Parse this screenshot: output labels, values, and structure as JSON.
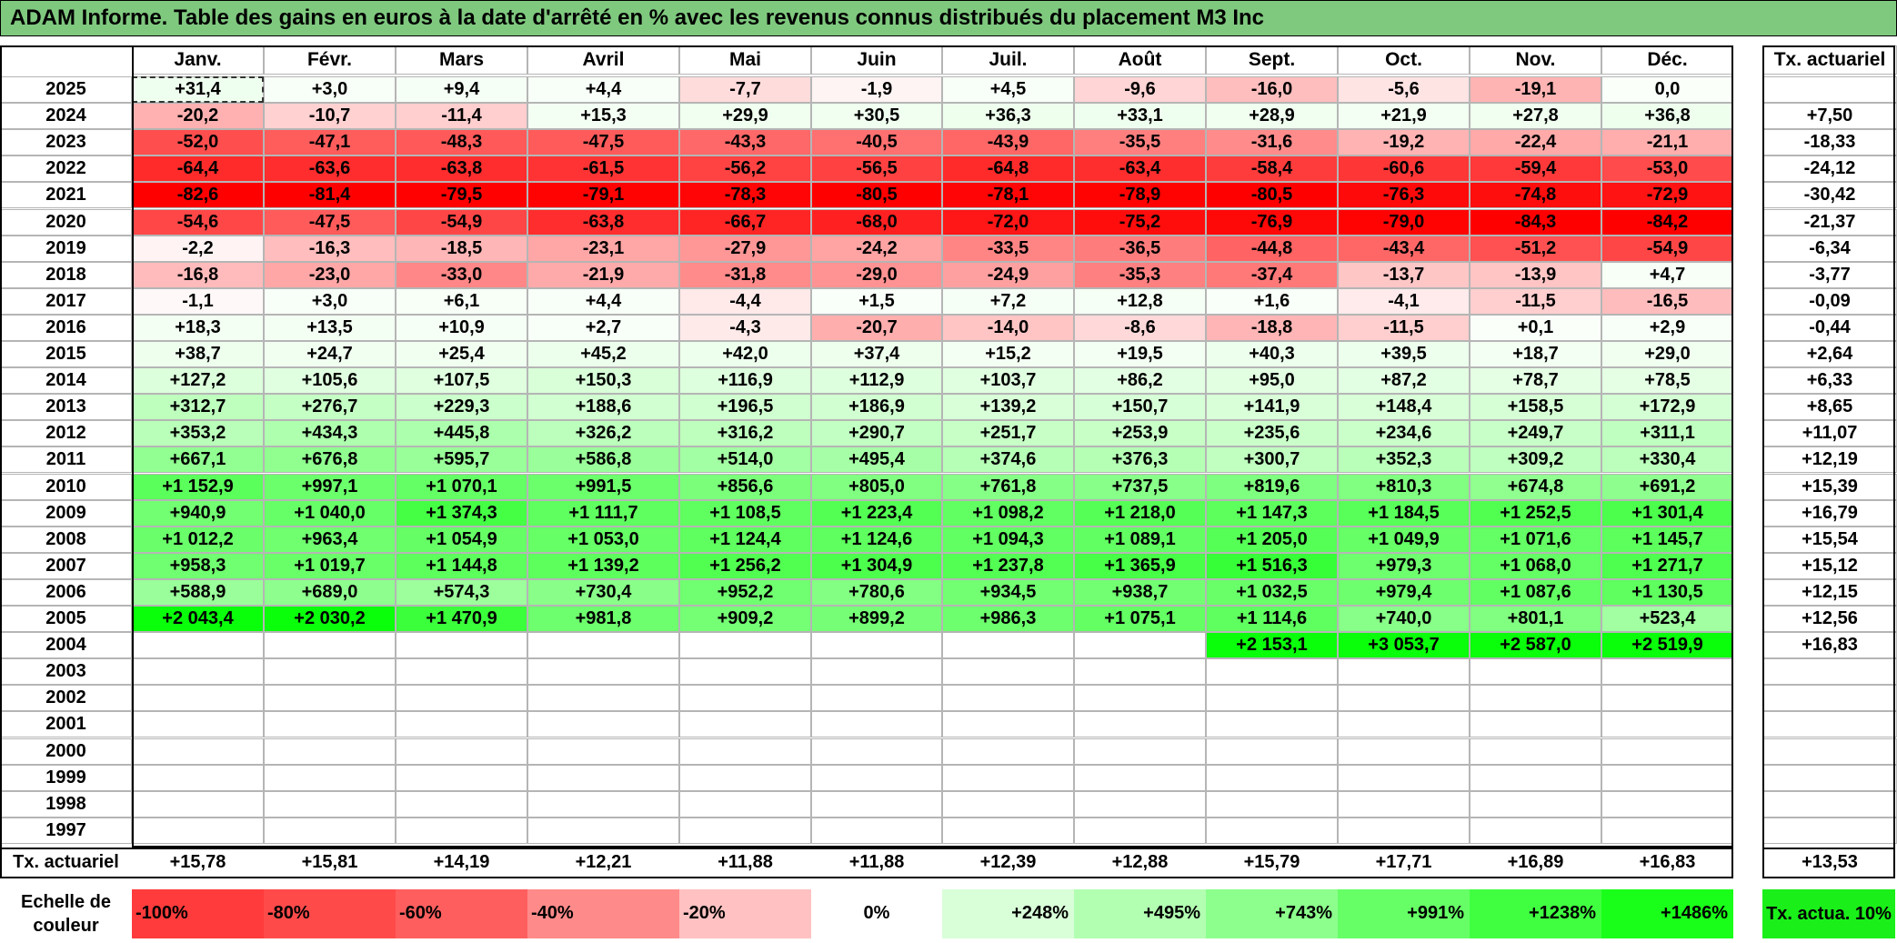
{
  "title": "ADAM Informe. Table des gains en euros à la date d'arrêté en % avec les revenus connus distribués du placement M3 Inc",
  "table": {
    "months": [
      "Janv.",
      "Févr.",
      "Mars",
      "Avril",
      "Mai",
      "Juin",
      "Juil.",
      "Août",
      "Sept.",
      "Oct.",
      "Nov.",
      "Déc."
    ],
    "rate_header": "Tx. actuariel",
    "rows": [
      {
        "year": "2025",
        "values": [
          "+31,4",
          "+3,0",
          "+9,4",
          "+4,4",
          "-7,7",
          "-1,9",
          "+4,5",
          "-9,6",
          "-16,0",
          "-5,6",
          "-19,1",
          "0,0"
        ],
        "rate": ""
      },
      {
        "year": "2024",
        "values": [
          "-20,2",
          "-10,7",
          "-11,4",
          "+15,3",
          "+29,9",
          "+30,5",
          "+36,3",
          "+33,1",
          "+28,9",
          "+21,9",
          "+27,8",
          "+36,8"
        ],
        "rate": "+7,50"
      },
      {
        "year": "2023",
        "values": [
          "-52,0",
          "-47,1",
          "-48,3",
          "-47,5",
          "-43,3",
          "-40,5",
          "-43,9",
          "-35,5",
          "-31,6",
          "-19,2",
          "-22,4",
          "-21,1"
        ],
        "rate": "-18,33"
      },
      {
        "year": "2022",
        "values": [
          "-64,4",
          "-63,6",
          "-63,8",
          "-61,5",
          "-56,2",
          "-56,5",
          "-64,8",
          "-63,4",
          "-58,4",
          "-60,6",
          "-59,4",
          "-53,0"
        ],
        "rate": "-24,12"
      },
      {
        "year": "2021",
        "values": [
          "-82,6",
          "-81,4",
          "-79,5",
          "-79,1",
          "-78,3",
          "-80,5",
          "-78,1",
          "-78,9",
          "-80,5",
          "-76,3",
          "-74,8",
          "-72,9"
        ],
        "rate": "-30,42"
      },
      {
        "year": "2020",
        "values": [
          "-54,6",
          "-47,5",
          "-54,9",
          "-63,8",
          "-66,7",
          "-68,0",
          "-72,0",
          "-75,2",
          "-76,9",
          "-79,0",
          "-84,3",
          "-84,2"
        ],
        "rate": "-21,37"
      },
      {
        "year": "2019",
        "values": [
          "-2,2",
          "-16,3",
          "-18,5",
          "-23,1",
          "-27,9",
          "-24,2",
          "-33,5",
          "-36,5",
          "-44,8",
          "-43,4",
          "-51,2",
          "-54,9"
        ],
        "rate": "-6,34"
      },
      {
        "year": "2018",
        "values": [
          "-16,8",
          "-23,0",
          "-33,0",
          "-21,9",
          "-31,8",
          "-29,0",
          "-24,9",
          "-35,3",
          "-37,4",
          "-13,7",
          "-13,9",
          "+4,7"
        ],
        "rate": "-3,77"
      },
      {
        "year": "2017",
        "values": [
          "-1,1",
          "+3,0",
          "+6,1",
          "+4,4",
          "-4,4",
          "+1,5",
          "+7,2",
          "+12,8",
          "+1,6",
          "-4,1",
          "-11,5",
          "-16,5"
        ],
        "rate": "-0,09"
      },
      {
        "year": "2016",
        "values": [
          "+18,3",
          "+13,5",
          "+10,9",
          "+2,7",
          "-4,3",
          "-20,7",
          "-14,0",
          "-8,6",
          "-18,8",
          "-11,5",
          "+0,1",
          "+2,9"
        ],
        "rate": "-0,44"
      },
      {
        "year": "2015",
        "values": [
          "+38,7",
          "+24,7",
          "+25,4",
          "+45,2",
          "+42,0",
          "+37,4",
          "+15,2",
          "+19,5",
          "+40,3",
          "+39,5",
          "+18,7",
          "+29,0"
        ],
        "rate": "+2,64"
      },
      {
        "year": "2014",
        "values": [
          "+127,2",
          "+105,6",
          "+107,5",
          "+150,3",
          "+116,9",
          "+112,9",
          "+103,7",
          "+86,2",
          "+95,0",
          "+87,2",
          "+78,7",
          "+78,5"
        ],
        "rate": "+6,33"
      },
      {
        "year": "2013",
        "values": [
          "+312,7",
          "+276,7",
          "+229,3",
          "+188,6",
          "+196,5",
          "+186,9",
          "+139,2",
          "+150,7",
          "+141,9",
          "+148,4",
          "+158,5",
          "+172,9"
        ],
        "rate": "+8,65"
      },
      {
        "year": "2012",
        "values": [
          "+353,2",
          "+434,3",
          "+445,8",
          "+326,2",
          "+316,2",
          "+290,7",
          "+251,7",
          "+253,9",
          "+235,6",
          "+234,6",
          "+249,7",
          "+311,1"
        ],
        "rate": "+11,07"
      },
      {
        "year": "2011",
        "values": [
          "+667,1",
          "+676,8",
          "+595,7",
          "+586,8",
          "+514,0",
          "+495,4",
          "+374,6",
          "+376,3",
          "+300,7",
          "+352,3",
          "+309,2",
          "+330,4"
        ],
        "rate": "+12,19"
      },
      {
        "year": "2010",
        "values": [
          "+1 152,9",
          "+997,1",
          "+1 070,1",
          "+991,5",
          "+856,6",
          "+805,0",
          "+761,8",
          "+737,5",
          "+819,6",
          "+810,3",
          "+674,8",
          "+691,2"
        ],
        "rate": "+15,39"
      },
      {
        "year": "2009",
        "values": [
          "+940,9",
          "+1 040,0",
          "+1 374,3",
          "+1 111,7",
          "+1 108,5",
          "+1 223,4",
          "+1 098,2",
          "+1 218,0",
          "+1 147,3",
          "+1 184,5",
          "+1 252,5",
          "+1 301,4"
        ],
        "rate": "+16,79"
      },
      {
        "year": "2008",
        "values": [
          "+1 012,2",
          "+963,4",
          "+1 054,9",
          "+1 053,0",
          "+1 124,4",
          "+1 124,6",
          "+1 094,3",
          "+1 089,1",
          "+1 205,0",
          "+1 049,9",
          "+1 071,6",
          "+1 145,7"
        ],
        "rate": "+15,54"
      },
      {
        "year": "2007",
        "values": [
          "+958,3",
          "+1 019,7",
          "+1 144,8",
          "+1 139,2",
          "+1 256,2",
          "+1 304,9",
          "+1 237,8",
          "+1 365,9",
          "+1 516,3",
          "+979,3",
          "+1 068,0",
          "+1 271,7"
        ],
        "rate": "+15,12"
      },
      {
        "year": "2006",
        "values": [
          "+588,9",
          "+689,0",
          "+574,3",
          "+730,4",
          "+952,2",
          "+780,6",
          "+934,5",
          "+938,7",
          "+1 032,5",
          "+979,4",
          "+1 087,6",
          "+1 130,5"
        ],
        "rate": "+12,15"
      },
      {
        "year": "2005",
        "values": [
          "+2 043,4",
          "+2 030,2",
          "+1 470,9",
          "+981,8",
          "+909,2",
          "+899,2",
          "+986,3",
          "+1 075,1",
          "+1 114,6",
          "+740,0",
          "+801,1",
          "+523,4"
        ],
        "rate": "+12,56"
      },
      {
        "year": "2004",
        "values": [
          "",
          "",
          "",
          "",
          "",
          "",
          "",
          "",
          "+2 153,1",
          "+3 053,7",
          "+2 587,0",
          "+2 519,9"
        ],
        "rate": "+16,83"
      },
      {
        "year": "2003",
        "values": [
          "",
          "",
          "",
          "",
          "",
          "",
          "",
          "",
          "",
          "",
          "",
          ""
        ],
        "rate": ""
      },
      {
        "year": "2002",
        "values": [
          "",
          "",
          "",
          "",
          "",
          "",
          "",
          "",
          "",
          "",
          "",
          ""
        ],
        "rate": ""
      },
      {
        "year": "2001",
        "values": [
          "",
          "",
          "",
          "",
          "",
          "",
          "",
          "",
          "",
          "",
          "",
          ""
        ],
        "rate": ""
      },
      {
        "year": "2000",
        "values": [
          "",
          "",
          "",
          "",
          "",
          "",
          "",
          "",
          "",
          "",
          "",
          ""
        ],
        "rate": ""
      },
      {
        "year": "1999",
        "values": [
          "",
          "",
          "",
          "",
          "",
          "",
          "",
          "",
          "",
          "",
          "",
          ""
        ],
        "rate": ""
      },
      {
        "year": "1998",
        "values": [
          "",
          "",
          "",
          "",
          "",
          "",
          "",
          "",
          "",
          "",
          "",
          ""
        ],
        "rate": ""
      },
      {
        "year": "1997",
        "values": [
          "",
          "",
          "",
          "",
          "",
          "",
          "",
          "",
          "",
          "",
          "",
          ""
        ],
        "rate": ""
      }
    ],
    "footer": {
      "label": "Tx. actuariel",
      "values": [
        "+15,78",
        "+15,81",
        "+14,19",
        "+12,21",
        "+11,88",
        "+11,88",
        "+12,39",
        "+12,88",
        "+15,79",
        "+17,71",
        "+16,89",
        "+16,83"
      ],
      "total": "+13,53"
    }
  },
  "legend": {
    "label": "Echelle de couleur",
    "items": [
      {
        "text": "-100%",
        "color": "#ff3b3b"
      },
      {
        "text": "-80%",
        "color": "#ff4a4a"
      },
      {
        "text": "-60%",
        "color": "#ff5e5e"
      },
      {
        "text": "-40%",
        "color": "#ff8a8a"
      },
      {
        "text": "-20%",
        "color": "#ffc1c1"
      },
      {
        "text": "0%",
        "color": "#ffffff"
      },
      {
        "text": "+248%",
        "color": "#d9ffd9"
      },
      {
        "text": "+495%",
        "color": "#b2ffb2"
      },
      {
        "text": "+743%",
        "color": "#8cff8c"
      },
      {
        "text": "+991%",
        "color": "#66ff66"
      },
      {
        "text": "+1238%",
        "color": "#40ff40"
      },
      {
        "text": "+1486%",
        "color": "#1aff1a"
      }
    ],
    "rate_label": "Tx. actua. 10%",
    "rate_color": "#1aef1a"
  }
}
